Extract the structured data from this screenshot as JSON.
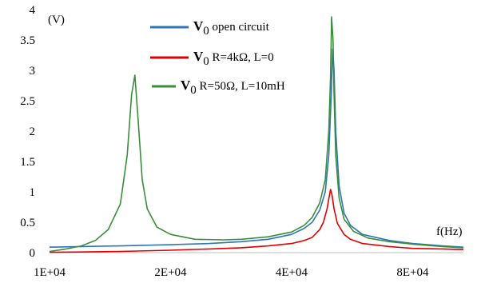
{
  "chart_data": {
    "type": "line",
    "title": "",
    "xlabel": "f(Hz)",
    "ylabel": "(V)",
    "xscale": "log",
    "xlim": [
      10000,
      107000
    ],
    "ylim": [
      0,
      4
    ],
    "xticks": [
      10000,
      20000,
      40000,
      80000
    ],
    "xtick_labels": [
      "1E+04",
      "2E+04",
      "4E+04",
      "8E+04"
    ],
    "yticks": [
      0,
      0.5,
      1,
      1.5,
      2,
      2.5,
      3,
      3.5,
      4
    ],
    "ytick_labels": [
      "0",
      "0.5",
      "1",
      "1.5",
      "2",
      "2.5",
      "3",
      "3.5",
      "4"
    ],
    "grid": false,
    "legend_position": "top-center",
    "series": [
      {
        "name_main": "V",
        "name_sub": "0",
        "name_rest": " open circuit",
        "color": "#2e75b6",
        "x": [
          10000,
          12000,
          15000,
          20000,
          25000,
          30000,
          35000,
          40000,
          43000,
          45000,
          47000,
          48500,
          49500,
          50200,
          50600,
          51000,
          51500,
          52500,
          54000,
          56000,
          60000,
          70000,
          80000,
          95000,
          107000
        ],
        "y": [
          0.09,
          0.1,
          0.11,
          0.13,
          0.15,
          0.18,
          0.22,
          0.3,
          0.4,
          0.5,
          0.7,
          1.0,
          1.6,
          2.6,
          3.35,
          3.0,
          2.0,
          1.1,
          0.65,
          0.45,
          0.3,
          0.2,
          0.15,
          0.11,
          0.09
        ]
      },
      {
        "name_main": "V",
        "name_sub": "0",
        "name_rest": " R=4kΩ, L=0",
        "color": "#e00000",
        "x": [
          10000,
          12000,
          15000,
          20000,
          25000,
          30000,
          35000,
          40000,
          43000,
          45000,
          47000,
          48000,
          49000,
          49600,
          50000,
          50400,
          51000,
          52000,
          54000,
          56000,
          60000,
          70000,
          80000,
          95000,
          107000
        ],
        "y": [
          0.005,
          0.01,
          0.02,
          0.04,
          0.06,
          0.08,
          0.11,
          0.15,
          0.2,
          0.25,
          0.38,
          0.5,
          0.72,
          0.92,
          1.04,
          0.95,
          0.72,
          0.48,
          0.3,
          0.22,
          0.15,
          0.1,
          0.07,
          0.06,
          0.05
        ]
      },
      {
        "name_main": "V",
        "name_sub": "0",
        "name_rest": " R=50Ω, L=10mH",
        "color": "#3a8e3a",
        "x": [
          10000,
          11000,
          12000,
          13000,
          14000,
          15000,
          15600,
          16000,
          16300,
          16600,
          17000,
          17500,
          18500,
          20000,
          23000,
          27000,
          30000,
          35000,
          40000,
          43000,
          45000,
          47000,
          48500,
          49500,
          50000,
          50300,
          50700,
          51000,
          51500,
          52500,
          54000,
          57000,
          62000,
          70000,
          80000,
          95000,
          107000
        ],
        "y": [
          0.02,
          0.06,
          0.11,
          0.2,
          0.38,
          0.8,
          1.6,
          2.6,
          2.92,
          2.2,
          1.2,
          0.72,
          0.42,
          0.3,
          0.22,
          0.21,
          0.22,
          0.26,
          0.34,
          0.45,
          0.58,
          0.82,
          1.2,
          2.0,
          2.9,
          3.88,
          3.5,
          2.6,
          1.6,
          0.9,
          0.55,
          0.35,
          0.24,
          0.18,
          0.14,
          0.1,
          0.08
        ]
      }
    ]
  }
}
